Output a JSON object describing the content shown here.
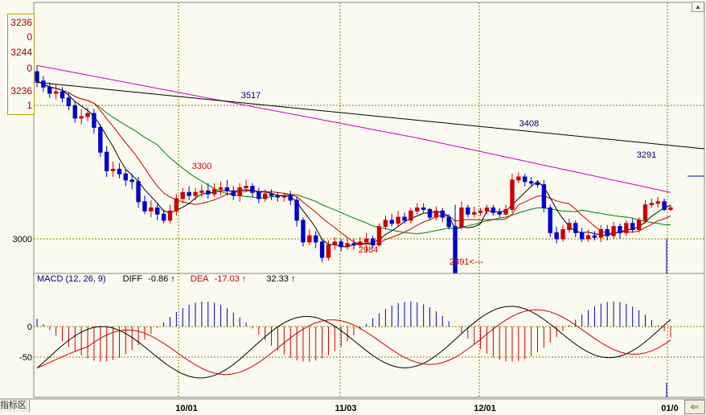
{
  "chart_data": [
    {
      "type": "candlestick",
      "panel": "price",
      "y_axis_labels": [
        "3000"
      ],
      "x_labels": [
        "10/01",
        "11/03",
        "12/01",
        "01/0"
      ],
      "annotations": [
        {
          "text": "3517",
          "value": 3517,
          "color": "#000080"
        },
        {
          "text": "3300",
          "value": 3300,
          "color": "#cc0000"
        },
        {
          "text": "2984",
          "value": 2984,
          "color": "#cc0000"
        },
        {
          "text": "2891<---",
          "value": 2891,
          "color": "#cc0000"
        },
        {
          "text": "3408",
          "value": 3408,
          "color": "#000080"
        },
        {
          "text": "3291",
          "value": 3291,
          "color": "#000080"
        }
      ],
      "value_box": [
        "3236",
        "0",
        "3244",
        "0",
        "3236",
        "1"
      ],
      "series_colors": {
        "up": "#cc0000",
        "down": "#0000cc",
        "ma5": "#000000",
        "ma10": "#cc0000",
        "ma20": "#008000",
        "ma60": "#cc00cc",
        "trend": "#000000"
      }
    },
    {
      "type": "macd",
      "panel": "indicator",
      "legend": {
        "name": "MACD (12, 26, 9)",
        "diff_label": "DIFF",
        "diff_value": "-0.86 ↑",
        "dea_label": "DEA",
        "dea_value": "-17.03 ↑",
        "macd_value": "32.33 ↑"
      },
      "y_axis_labels": [
        "0",
        "-50"
      ]
    }
  ],
  "ui": {
    "indicator_tab": "指标区",
    "nav_arrow": "⇐",
    "scroll_arrow": "▲"
  },
  "colors": {
    "background": "#fafaf0",
    "grid": "#808000",
    "frame": "#888888"
  }
}
